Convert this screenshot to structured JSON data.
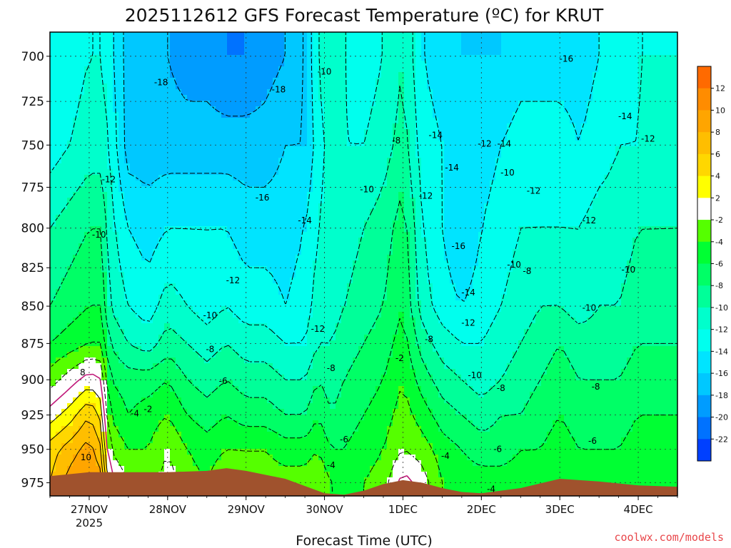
{
  "page": {
    "title": "2025112612 GFS Forecast Temperature (ºC) for KRUT",
    "credit": "coolwx.com/models"
  },
  "chart_data": {
    "type": "heatmap",
    "title": "2025112612 GFS Forecast Temperature (ºC) for KRUT",
    "xlabel": "Forecast Time (UTC)",
    "ylabel": "",
    "x_range_hours": [
      -12,
      180
    ],
    "y_range_hpa": [
      985,
      687
    ],
    "y_ticks": [
      {
        "value": 700,
        "label": "700"
      },
      {
        "value": 725,
        "label": "725"
      },
      {
        "value": 750,
        "label": "750"
      },
      {
        "value": 775,
        "label": "775"
      },
      {
        "value": 800,
        "label": "800"
      },
      {
        "value": 825,
        "label": "825"
      },
      {
        "value": 850,
        "label": "850"
      },
      {
        "value": 875,
        "label": "875"
      },
      {
        "value": 900,
        "label": "900"
      },
      {
        "value": 925,
        "label": "925"
      },
      {
        "value": 950,
        "label": "950"
      },
      {
        "value": 975,
        "label": "975"
      }
    ],
    "x_ticks": [
      {
        "hour": 0,
        "label": "27NOV",
        "sub": "2025"
      },
      {
        "hour": 24,
        "label": "28NOV",
        "sub": ""
      },
      {
        "hour": 48,
        "label": "29NOV",
        "sub": ""
      },
      {
        "hour": 72,
        "label": "30NOV",
        "sub": ""
      },
      {
        "hour": 96,
        "label": "1DEC",
        "sub": ""
      },
      {
        "hour": 120,
        "label": "2DEC",
        "sub": ""
      },
      {
        "hour": 144,
        "label": "3DEC",
        "sub": ""
      },
      {
        "hour": 168,
        "label": "4DEC",
        "sub": ""
      }
    ],
    "grid": true,
    "color_bar": {
      "placement": "right",
      "labels": [
        "12",
        "10",
        "8",
        "6",
        "4",
        "2",
        "-2",
        "-4",
        "-6",
        "-8",
        "-10",
        "-12",
        "-14",
        "-16",
        "-18",
        "-20",
        "-22"
      ],
      "colors": [
        "#ff6a00",
        "#ff8c00",
        "#ffa500",
        "#ffbe00",
        "#ffd700",
        "#ffff00",
        "#ffffff",
        "#55ff00",
        "#00ff33",
        "#00ff66",
        "#00ff99",
        "#00ffcc",
        "#00ffee",
        "#00e4ff",
        "#00c8ff",
        "#009cff",
        "#0072ff",
        "#0040ff"
      ]
    },
    "columns": [
      {
        "h": -12,
        "t": [
          6,
          5,
          1,
          -3,
          -6,
          -8,
          -10,
          -13,
          -14
        ]
      },
      {
        "h": -6,
        "t": [
          9,
          7,
          3,
          -1,
          -5,
          -7,
          -9,
          -12,
          -13
        ]
      },
      {
        "h": 0,
        "t": [
          10,
          9,
          6,
          1,
          -4,
          -6,
          -8,
          -11,
          -12
        ]
      },
      {
        "h": 4,
        "t": [
          9,
          6,
          3,
          0,
          -4,
          -6,
          -8,
          -11,
          -12
        ]
      },
      {
        "h": 6,
        "t": [
          1,
          -2,
          -4,
          -6,
          -8,
          -10,
          -11,
          -12,
          -13
        ]
      },
      {
        "h": 12,
        "t": [
          -2,
          -4,
          -6,
          -7,
          -10,
          -12,
          -14,
          -17,
          -17
        ]
      },
      {
        "h": 18,
        "t": [
          -3,
          -4,
          -5,
          -7,
          -11,
          -13,
          -15,
          -17,
          -17
        ]
      },
      {
        "h": 24,
        "t": [
          -1,
          -2,
          -4,
          -6,
          -9,
          -11,
          -14,
          -17,
          -18
        ]
      },
      {
        "h": 30,
        "t": [
          -3,
          -4,
          -6,
          -8,
          -10,
          -12,
          -14,
          -17,
          -19
        ]
      },
      {
        "h": 36,
        "t": [
          -4,
          -5,
          -7,
          -9,
          -11,
          -13,
          -14,
          -17,
          -19
        ]
      },
      {
        "h": 42,
        "t": [
          -2,
          -4,
          -6,
          -8,
          -10,
          -12,
          -14,
          -17,
          -20
        ]
      },
      {
        "h": 48,
        "t": [
          -3,
          -4,
          -7,
          -9,
          -11,
          -13,
          -15,
          -17,
          -20
        ]
      },
      {
        "h": 54,
        "t": [
          -3,
          -4,
          -7,
          -9,
          -11,
          -13,
          -15,
          -17,
          -19
        ]
      },
      {
        "h": 60,
        "t": [
          -3,
          -5,
          -8,
          -10,
          -12,
          -14,
          -15,
          -16,
          -18
        ]
      },
      {
        "h": 66,
        "t": [
          -3,
          -5,
          -8,
          -10,
          -12,
          -13,
          -14,
          -16,
          -16
        ]
      },
      {
        "h": 70,
        "t": [
          -2,
          -4,
          -6,
          -8,
          -10,
          -11,
          -12,
          -13,
          -12
        ]
      },
      {
        "h": 74,
        "t": [
          -4,
          -6,
          -8,
          -9,
          -10,
          -11,
          -11,
          -11,
          -10
        ]
      },
      {
        "h": 78,
        "t": [
          -5,
          -6,
          -7,
          -8,
          -9,
          -10,
          -11,
          -12,
          -12
        ]
      },
      {
        "h": 84,
        "t": [
          -4,
          -5,
          -6,
          -7,
          -8,
          -9,
          -10,
          -12,
          -13
        ]
      },
      {
        "h": 90,
        "t": [
          -3,
          -4,
          -5,
          -6,
          -7,
          -8,
          -9,
          -11,
          -12
        ]
      },
      {
        "h": 96,
        "t": [
          1,
          -2,
          -3,
          -4,
          -5,
          -6,
          -7,
          -9,
          -10
        ]
      },
      {
        "h": 102,
        "t": [
          -1,
          -3,
          -5,
          -7,
          -9,
          -11,
          -12,
          -13,
          -14
        ]
      },
      {
        "h": 108,
        "t": [
          -4,
          -5,
          -7,
          -9,
          -11,
          -13,
          -14,
          -14,
          -15
        ]
      },
      {
        "h": 114,
        "t": [
          -5,
          -6,
          -8,
          -10,
          -12,
          -14,
          -16,
          -16,
          -16
        ]
      },
      {
        "h": 120,
        "t": [
          -5,
          -7,
          -9,
          -11,
          -12,
          -13,
          -14,
          -15,
          -16
        ]
      },
      {
        "h": 126,
        "t": [
          -5,
          -7,
          -8,
          -10,
          -11,
          -12,
          -13,
          -14,
          -16
        ]
      },
      {
        "h": 132,
        "t": [
          -5,
          -6,
          -8,
          -9,
          -10,
          -11,
          -12,
          -13,
          -15
        ]
      },
      {
        "h": 138,
        "t": [
          -5,
          -6,
          -7,
          -8,
          -9,
          -10,
          -12,
          -13,
          -15
        ]
      },
      {
        "h": 144,
        "t": [
          -4,
          -5,
          -6,
          -7,
          -8,
          -10,
          -12,
          -13,
          -15
        ]
      },
      {
        "h": 150,
        "t": [
          -5,
          -6,
          -7,
          -8,
          -9,
          -11,
          -12,
          -14,
          -15
        ]
      },
      {
        "h": 156,
        "t": [
          -5,
          -6,
          -7,
          -8,
          -9,
          -10,
          -11,
          -13,
          -14
        ]
      },
      {
        "h": 162,
        "t": [
          -5,
          -6,
          -7,
          -8,
          -9,
          -10,
          -11,
          -12,
          -13
        ]
      },
      {
        "h": 168,
        "t": [
          -4,
          -5,
          -6,
          -7,
          -8,
          -9,
          -10,
          -12,
          -12
        ]
      },
      {
        "h": 180,
        "t": [
          -4,
          -5,
          -6,
          -7,
          -8,
          -9,
          -10,
          -11,
          -12
        ]
      }
    ],
    "column_pressure_levels_hpa": [
      975,
      950,
      925,
      900,
      875,
      850,
      800,
      750,
      700
    ],
    "terrain": [
      {
        "h": -12,
        "p": 970
      },
      {
        "h": 0,
        "p": 967
      },
      {
        "h": 12,
        "p": 967
      },
      {
        "h": 24,
        "p": 967
      },
      {
        "h": 36,
        "p": 966
      },
      {
        "h": 42,
        "p": 964
      },
      {
        "h": 48,
        "p": 966
      },
      {
        "h": 60,
        "p": 972
      },
      {
        "h": 72,
        "p": 983
      },
      {
        "h": 78,
        "p": 984
      },
      {
        "h": 84,
        "p": 981
      },
      {
        "h": 90,
        "p": 976
      },
      {
        "h": 96,
        "p": 973
      },
      {
        "h": 102,
        "p": 975
      },
      {
        "h": 108,
        "p": 979
      },
      {
        "h": 114,
        "p": 982
      },
      {
        "h": 120,
        "p": 983
      },
      {
        "h": 132,
        "p": 979
      },
      {
        "h": 144,
        "p": 972
      },
      {
        "h": 156,
        "p": 974
      },
      {
        "h": 168,
        "p": 977
      },
      {
        "h": 180,
        "p": 978
      }
    ],
    "annotations": [
      {
        "text": "-18",
        "h": 22,
        "p": 716
      },
      {
        "text": "-18",
        "h": 58,
        "p": 720
      },
      {
        "text": "-10",
        "h": 72,
        "p": 710
      },
      {
        "text": "-16",
        "h": 146,
        "p": 703
      },
      {
        "text": "-14",
        "h": 164,
        "p": 735
      },
      {
        "text": "-12",
        "h": 171,
        "p": 748
      },
      {
        "text": "-12",
        "h": 121,
        "p": 751
      },
      {
        "text": "-14",
        "h": 127,
        "p": 751
      },
      {
        "text": "-8",
        "h": 94,
        "p": 749
      },
      {
        "text": "-14",
        "h": 106,
        "p": 746
      },
      {
        "text": "-14",
        "h": 111,
        "p": 765
      },
      {
        "text": "-10",
        "h": 128,
        "p": 768
      },
      {
        "text": "-12",
        "h": 136,
        "p": 779
      },
      {
        "text": "-12",
        "h": 153,
        "p": 797
      },
      {
        "text": "-10",
        "h": 85,
        "p": 778
      },
      {
        "text": "-12",
        "h": 103,
        "p": 782
      },
      {
        "text": "-12",
        "h": 6,
        "p": 772
      },
      {
        "text": "-16",
        "h": 53,
        "p": 783
      },
      {
        "text": "-14",
        "h": 66,
        "p": 797
      },
      {
        "text": "-10",
        "h": 3,
        "p": 806
      },
      {
        "text": "-16",
        "h": 113,
        "p": 813
      },
      {
        "text": "-10",
        "h": 130,
        "p": 825
      },
      {
        "text": "-8",
        "h": 134,
        "p": 829
      },
      {
        "text": "-10",
        "h": 165,
        "p": 828
      },
      {
        "text": "-12",
        "h": 44,
        "p": 835
      },
      {
        "text": "-14",
        "h": 116,
        "p": 843
      },
      {
        "text": "-10",
        "h": 153,
        "p": 853
      },
      {
        "text": "-10",
        "h": 37,
        "p": 858
      },
      {
        "text": "-12",
        "h": 116,
        "p": 863
      },
      {
        "text": "-12",
        "h": 70,
        "p": 867
      },
      {
        "text": "-8",
        "h": 104,
        "p": 874
      },
      {
        "text": "-8",
        "h": 37,
        "p": 881
      },
      {
        "text": "-2",
        "h": 95,
        "p": 887
      },
      {
        "text": "-8",
        "h": 74,
        "p": 894
      },
      {
        "text": "-10",
        "h": 118,
        "p": 899
      },
      {
        "text": "-6",
        "h": 41,
        "p": 903
      },
      {
        "text": "-8",
        "h": 126,
        "p": 908
      },
      {
        "text": "-8",
        "h": 155,
        "p": 907
      },
      {
        "text": "8",
        "h": -2,
        "p": 897
      },
      {
        "text": "-4",
        "h": 14,
        "p": 926
      },
      {
        "text": "-2",
        "h": 18,
        "p": 923
      },
      {
        "text": "-6",
        "h": 78,
        "p": 945
      },
      {
        "text": "-6",
        "h": 154,
        "p": 946
      },
      {
        "text": "-6",
        "h": 125,
        "p": 952
      },
      {
        "text": "-4",
        "h": 109,
        "p": 957
      },
      {
        "text": "10",
        "h": -1,
        "p": 958
      },
      {
        "text": "-4",
        "h": 74,
        "p": 964
      },
      {
        "text": "-4",
        "h": 123,
        "p": 982
      }
    ]
  }
}
